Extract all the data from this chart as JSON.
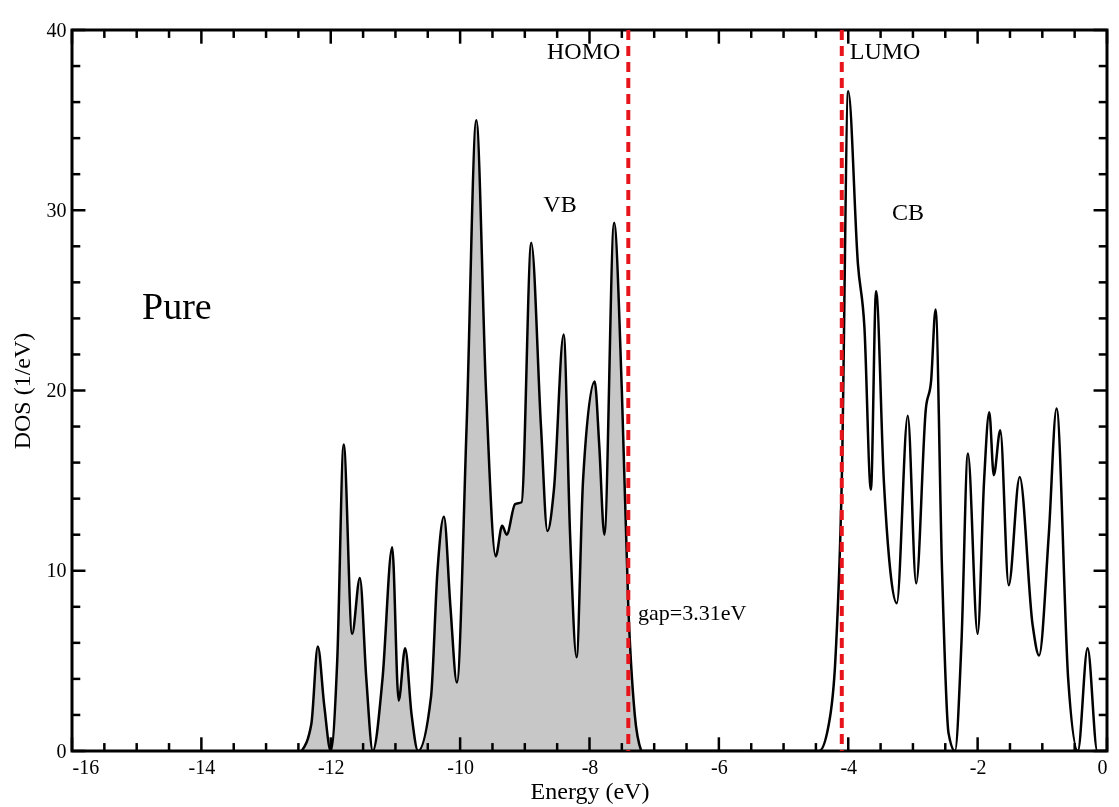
{
  "chart_data": {
    "type": "line",
    "xlabel": "Energy (eV)",
    "ylabel": "DOS (1/eV)",
    "xlim": [
      -16,
      0
    ],
    "ylim": [
      0,
      40
    ],
    "xticks": [
      -16,
      {
        "value": -15.5,
        "label": null
      },
      {
        "value": -15,
        "label": null
      },
      {
        "value": -14.5,
        "label": null
      },
      -14,
      {
        "value": -13.5,
        "label": null
      },
      {
        "value": -13,
        "label": null
      },
      {
        "value": -12.5,
        "label": null
      },
      -12,
      {
        "value": -11.5,
        "label": null
      },
      {
        "value": -11,
        "label": null
      },
      {
        "value": -10.5,
        "label": null
      },
      -10,
      {
        "value": -9.5,
        "label": null
      },
      {
        "value": -9,
        "label": null
      },
      {
        "value": -8.5,
        "label": null
      },
      -8,
      {
        "value": -7.5,
        "label": null
      },
      {
        "value": -7,
        "label": null
      },
      {
        "value": -6.5,
        "label": null
      },
      -6,
      {
        "value": -5.5,
        "label": null
      },
      {
        "value": -5,
        "label": null
      },
      {
        "value": -4.5,
        "label": null
      },
      -4,
      {
        "value": -3.5,
        "label": null
      },
      {
        "value": -3,
        "label": null
      },
      {
        "value": -2.5,
        "label": null
      },
      -2,
      {
        "value": -1.5,
        "label": null
      },
      {
        "value": -1,
        "label": null
      },
      {
        "value": -0.5,
        "label": null
      },
      0
    ],
    "yticks": [
      0,
      {
        "value": 2,
        "label": null
      },
      {
        "value": 4,
        "label": null
      },
      {
        "value": 6,
        "label": null
      },
      {
        "value": 8,
        "label": null
      },
      10,
      {
        "value": 12,
        "label": null
      },
      {
        "value": 14,
        "label": null
      },
      {
        "value": 16,
        "label": null
      },
      {
        "value": 18,
        "label": null
      },
      20,
      {
        "value": 22,
        "label": null
      },
      {
        "value": 24,
        "label": null
      },
      {
        "value": 26,
        "label": null
      },
      {
        "value": 28,
        "label": null
      },
      30,
      {
        "value": 32,
        "label": null
      },
      {
        "value": 34,
        "label": null
      },
      {
        "value": 36,
        "label": null
      },
      {
        "value": 38,
        "label": null
      },
      40
    ],
    "grid": false,
    "line_style": "solid",
    "series": [
      {
        "type": "area",
        "color": "#000000",
        "x": [
          -12.45,
          -12.3,
          -12.2,
          -12.1,
          -12.0,
          -11.9,
          -11.8,
          -11.67,
          -11.55,
          -11.45,
          -11.35,
          -11.2,
          -11.05,
          -10.95,
          -10.85,
          -10.75,
          -10.65,
          -10.45,
          -10.35,
          -10.25,
          -10.15,
          -10.05,
          -9.9,
          -9.75,
          -9.6,
          -9.45,
          -9.35,
          -9.28,
          -9.15,
          -9.05,
          -8.9,
          -8.75,
          -8.65,
          -8.55,
          -8.4,
          -8.3,
          -8.2,
          -8.1,
          -7.92,
          -7.85,
          -7.77,
          -7.62,
          -7.5,
          -7.4,
          -7.3,
          -7.2
        ],
        "values": [
          0,
          1.5,
          5.8,
          2.5,
          0,
          5,
          17,
          6.5,
          9.6,
          4,
          0,
          4,
          11.3,
          2.8,
          5.7,
          2,
          0,
          3,
          10,
          13,
          8,
          3.8,
          18,
          35,
          20,
          10.8,
          12.5,
          12,
          13.7,
          13.8,
          28.2,
          18,
          12.2,
          14.5,
          23.1,
          12,
          5.2,
          15,
          20.5,
          17,
          12,
          29.3,
          20,
          8,
          2,
          0
        ]
      },
      {
        "color": "#000000",
        "x": [
          -7.2,
          -6,
          -5,
          -4.45,
          -4.3,
          -4.2,
          -4.1,
          -4.0,
          -3.85,
          -3.75,
          -3.65,
          -3.57,
          -3.45,
          -3.35,
          -3.25,
          -3.08,
          -2.95,
          -2.8,
          -2.72,
          -2.65,
          -2.55,
          -2.45,
          -2.35,
          -2.25,
          -2.15,
          -2.0,
          -1.9,
          -1.82,
          -1.75,
          -1.65,
          -1.52,
          -1.35,
          -1.15,
          -1.05,
          -0.9,
          -0.78,
          -0.6,
          -0.45,
          -0.3,
          -0.15,
          0
        ],
        "values": [
          0,
          0,
          0,
          0,
          1.5,
          5,
          15,
          36.6,
          27,
          23.5,
          14.5,
          25.5,
          15,
          10,
          8.2,
          18.6,
          9.3,
          19,
          20.5,
          24.5,
          10,
          1,
          0,
          6,
          16.5,
          6.5,
          15,
          18.8,
          15.3,
          17.8,
          9.2,
          15.2,
          7,
          5.3,
          12,
          19,
          4,
          0,
          5.7,
          0,
          0
        ]
      }
    ],
    "ref_lines": [
      {
        "axis": "x",
        "value": -7.4,
        "label": "HOMO",
        "color": "#e8141c",
        "line_style": "dashed"
      },
      {
        "axis": "x",
        "value": -4.1,
        "label": "LUMO",
        "color": "#e8141c",
        "line_style": "dashed"
      }
    ],
    "annotations": [
      "Pure",
      "VB",
      "CB",
      "gap=3.31eV"
    ]
  }
}
